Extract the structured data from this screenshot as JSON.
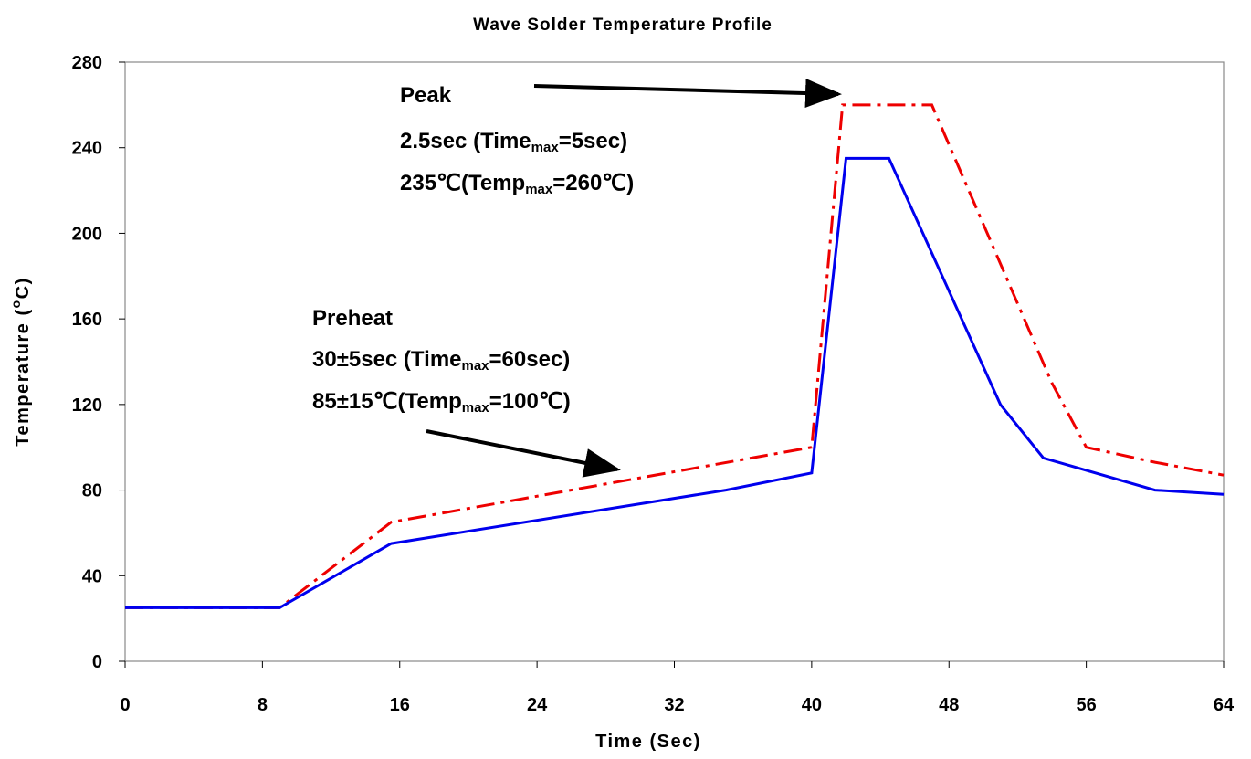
{
  "chart_data": {
    "type": "line",
    "title": "Wave Solder Temperature Profile",
    "xlabel": "Time (Sec)",
    "ylabel_main": "Temperature (",
    "ylabel_deg": "o",
    "ylabel_unit": "C)",
    "xlim": [
      0,
      64
    ],
    "ylim": [
      0,
      280
    ],
    "xticks": [
      "0",
      "8",
      "16",
      "24",
      "32",
      "40",
      "48",
      "56",
      "64"
    ],
    "yticks": [
      "0",
      "40",
      "80",
      "120",
      "160",
      "200",
      "240",
      "280"
    ],
    "grid": false,
    "series": [
      {
        "style": "solid",
        "color": "#0000ee",
        "x": [
          0,
          9,
          15.5,
          35,
          40,
          42,
          44.5,
          51,
          53.5,
          60,
          64
        ],
        "y": [
          25,
          25,
          55,
          80,
          88,
          235,
          235,
          120,
          95,
          80,
          78
        ]
      },
      {
        "style": "dash-dot",
        "color": "#ee0000",
        "x": [
          0,
          9,
          15.5,
          40,
          41.8,
          47,
          54,
          56,
          60,
          64
        ],
        "y": [
          25,
          25,
          65,
          100,
          260,
          260,
          130,
          100,
          93,
          87
        ]
      }
    ],
    "annotations": {
      "peak": {
        "heading": "Peak",
        "line1_pre": "2.5sec (Time",
        "line1_sub": "max",
        "line1_post": "=5sec)",
        "line2_pre": "235℃(Temp",
        "line2_sub": "max",
        "line2_post": "=260℃)"
      },
      "preheat": {
        "heading": "Preheat",
        "line1_pre": "30±5sec (Time",
        "line1_sub": "max",
        "line1_post": "=60sec)",
        "line2_pre": "85±15℃(Temp",
        "line2_sub": "max",
        "line2_post": "=100℃)"
      }
    }
  }
}
